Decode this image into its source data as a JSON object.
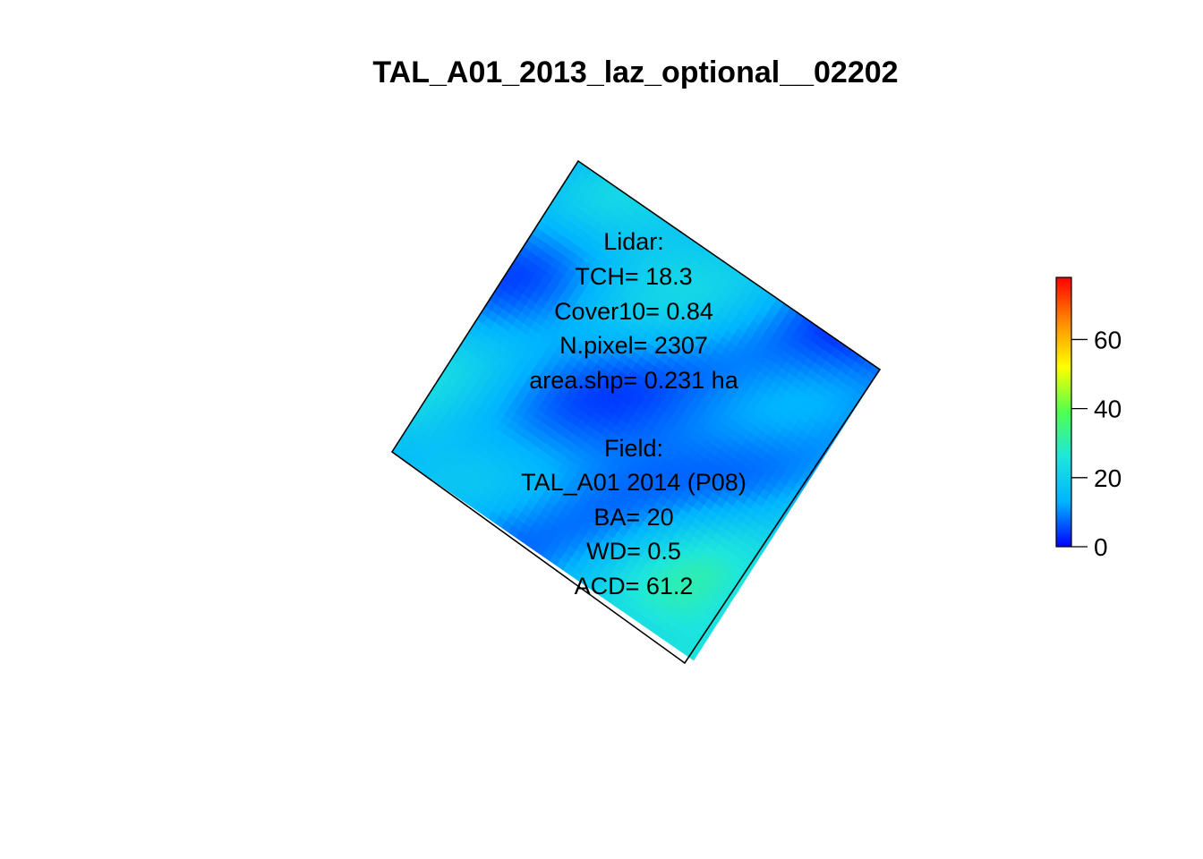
{
  "chart_data": {
    "type": "heatmap",
    "title": "TAL_A01_2013_laz_optional__02202",
    "xlabel": "",
    "ylabel": "",
    "grid": false,
    "color_scale": {
      "name": "rainbow",
      "colors": [
        "#0000ff",
        "#00b4ff",
        "#1ee6dc",
        "#50ff50",
        "#ffff00",
        "#ff8c00",
        "#ff0000"
      ],
      "range": [
        0,
        78
      ],
      "ticks": [
        0,
        20,
        40,
        60
      ],
      "tick_labels": [
        "0",
        "20",
        "40",
        "60"
      ],
      "position": "right"
    },
    "annotations": {
      "lidar": [
        "Lidar:",
        "TCH= 18.3",
        "Cover10= 0.84",
        "N.pixel= 2307",
        "area.shp= 0.231 ha"
      ],
      "field": [
        "Field:",
        "TAL_A01 2014 (P08)",
        "BA= 20",
        "WD= 0.5",
        "ACD= 61.2"
      ]
    },
    "raster": {
      "rows": 44,
      "cols": 44,
      "shape": "rotated square plot polygon",
      "value_range": [
        3,
        34
      ],
      "mean_height": 18.3
    }
  }
}
